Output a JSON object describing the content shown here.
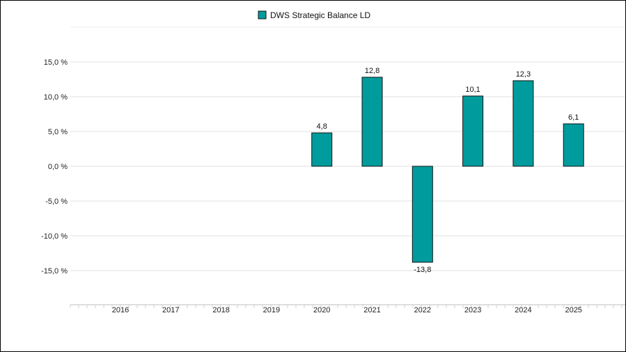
{
  "chart_data": {
    "type": "bar",
    "categories": [
      "2016",
      "2017",
      "2018",
      "2019",
      "2020",
      "2021",
      "2022",
      "2023",
      "2024",
      "2025"
    ],
    "series": [
      {
        "name": "DWS Strategic Balance LD",
        "values": [
          null,
          null,
          null,
          null,
          4.8,
          12.8,
          -13.8,
          10.1,
          12.3,
          6.1
        ],
        "value_labels": [
          "",
          "",
          "",
          "",
          "4,8",
          "12,8",
          "-13,8",
          "10,1",
          "12,3",
          "6,1"
        ],
        "color": "#009b9c",
        "border_color": "#111111"
      }
    ],
    "y_ticks": [
      15,
      10,
      5,
      0,
      -5,
      -10,
      -15
    ],
    "y_tick_labels": [
      "15,0 %",
      "10,0 %",
      "5,0 %",
      "0,0 %",
      "-5,0 %",
      "-10,0 %",
      "-15,0 %"
    ],
    "ylim": [
      -20,
      20
    ],
    "grid": true,
    "legend_position": "top-center",
    "title": "",
    "xlabel": "",
    "ylabel": ""
  }
}
